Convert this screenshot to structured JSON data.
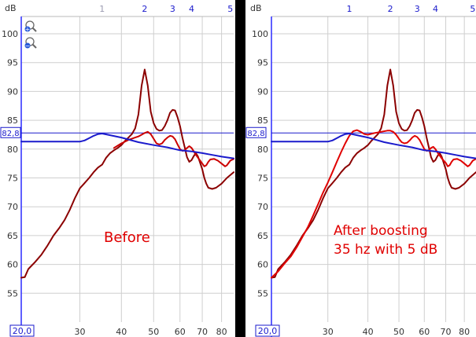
{
  "panels": [
    {
      "id": "before",
      "show_zoom_icons": true,
      "unit_label": "dB",
      "annotation": "Before",
      "ref_level_label": "82,8",
      "x_start_label": "20,0",
      "freq_markers": [
        {
          "label": "1",
          "freq": 35,
          "highlighted": false
        },
        {
          "label": "2",
          "freq": 47,
          "highlighted": true
        },
        {
          "label": "3",
          "freq": 57,
          "highlighted": true
        },
        {
          "label": "4",
          "freq": 65,
          "highlighted": true
        },
        {
          "label": "5",
          "freq": 85,
          "highlighted": true
        }
      ]
    },
    {
      "id": "after",
      "show_zoom_icons": false,
      "unit_label": "dB",
      "annotation": "After boosting\n35 hz with 5 dB",
      "ref_level_label": "82,8",
      "x_start_label": "20,0",
      "freq_markers": [
        {
          "label": "1",
          "freq": 35,
          "highlighted": true
        },
        {
          "label": "2",
          "freq": 47,
          "highlighted": true
        },
        {
          "label": "3",
          "freq": 57,
          "highlighted": true
        },
        {
          "label": "4",
          "freq": 65,
          "highlighted": true
        },
        {
          "label": "5",
          "freq": 85,
          "highlighted": true
        }
      ]
    }
  ],
  "chart_data": [
    {
      "type": "line",
      "title": "Before",
      "x_scale": "log",
      "xlim": [
        20,
        87
      ],
      "ylim": [
        50,
        103
      ],
      "xticks": [
        30,
        40,
        50,
        60,
        70,
        80
      ],
      "yticks": [
        55,
        60,
        65,
        70,
        75,
        80,
        85,
        90,
        95,
        100
      ],
      "ref_level": 82.8,
      "grid": true,
      "series": [
        {
          "color": "#8b0000",
          "points": [
            [
              20,
              57.7
            ],
            [
              20.5,
              57.8
            ],
            [
              21,
              59.2
            ],
            [
              22,
              60.4
            ],
            [
              23,
              61.7
            ],
            [
              24,
              63.3
            ],
            [
              25,
              65
            ],
            [
              26,
              66.3
            ],
            [
              27,
              67.7
            ],
            [
              28,
              69.5
            ],
            [
              29,
              71.5
            ],
            [
              30,
              73.2
            ],
            [
              31,
              74.1
            ],
            [
              32,
              75
            ],
            [
              33,
              76
            ],
            [
              34,
              76.8
            ],
            [
              35,
              77.3
            ],
            [
              36,
              78.5
            ],
            [
              37,
              79.3
            ],
            [
              38,
              79.8
            ],
            [
              39,
              80.2
            ],
            [
              40,
              80.7
            ],
            [
              41,
              81.4
            ],
            [
              42,
              82
            ],
            [
              43,
              82.6
            ],
            [
              44,
              83.6
            ],
            [
              45,
              86
            ],
            [
              46,
              91
            ],
            [
              47,
              93.8
            ],
            [
              48,
              91
            ],
            [
              49,
              86.5
            ],
            [
              50,
              84.5
            ],
            [
              51,
              83.5
            ],
            [
              52,
              83.2
            ],
            [
              53,
              83.3
            ],
            [
              54,
              84
            ],
            [
              55,
              85
            ],
            [
              56,
              86.3
            ],
            [
              57,
              86.8
            ],
            [
              58,
              86.7
            ],
            [
              59,
              85.5
            ],
            [
              60,
              84
            ],
            [
              61,
              82
            ],
            [
              62,
              80.3
            ],
            [
              63,
              78.6
            ],
            [
              64,
              77.8
            ],
            [
              65,
              78.1
            ],
            [
              66,
              78.8
            ],
            [
              67,
              79.3
            ],
            [
              68,
              78.7
            ],
            [
              70,
              76.5
            ],
            [
              71,
              75
            ],
            [
              72,
              74
            ],
            [
              73,
              73.3
            ],
            [
              75,
              73.1
            ],
            [
              77,
              73.3
            ],
            [
              80,
              74
            ],
            [
              83,
              75
            ],
            [
              87,
              76
            ]
          ]
        },
        {
          "color": "#cc0000",
          "points": [
            [
              38,
              80.2
            ],
            [
              40,
              81
            ],
            [
              42,
              81.6
            ],
            [
              44,
              82
            ],
            [
              45,
              82.2
            ],
            [
              46,
              82.5
            ],
            [
              47,
              82.8
            ],
            [
              48,
              83
            ],
            [
              49,
              82.6
            ],
            [
              50,
              81.8
            ],
            [
              51,
              81
            ],
            [
              52,
              80.8
            ],
            [
              53,
              81
            ],
            [
              54,
              81.6
            ],
            [
              55,
              82
            ],
            [
              56,
              82.3
            ],
            [
              57,
              82.2
            ],
            [
              58,
              81.7
            ],
            [
              59,
              80.8
            ],
            [
              60,
              80
            ],
            [
              61,
              79.7
            ],
            [
              62,
              79.8
            ],
            [
              63,
              80.2
            ],
            [
              64,
              80.5
            ],
            [
              65,
              80.2
            ],
            [
              66,
              79.6
            ],
            [
              67,
              79
            ],
            [
              68,
              78.5
            ],
            [
              70,
              77.5
            ],
            [
              71,
              77
            ],
            [
              72,
              77.2
            ],
            [
              73,
              77.8
            ],
            [
              74,
              78.2
            ],
            [
              76,
              78.3
            ],
            [
              78,
              78
            ],
            [
              80,
              77.5
            ],
            [
              82,
              77
            ],
            [
              83,
              77.2
            ],
            [
              85,
              78
            ],
            [
              87,
              78.3
            ]
          ]
        },
        {
          "color": "#1a1acc",
          "points": [
            [
              20,
              81.3
            ],
            [
              30,
              81.3
            ],
            [
              31,
              81.5
            ],
            [
              32,
              81.9
            ],
            [
              33,
              82.3
            ],
            [
              34,
              82.6
            ],
            [
              35,
              82.7
            ],
            [
              40,
              82
            ],
            [
              45,
              81.2
            ],
            [
              50,
              80.7
            ],
            [
              55,
              80.3
            ],
            [
              60,
              79.8
            ],
            [
              65,
              79.6
            ],
            [
              70,
              79.3
            ],
            [
              75,
              79
            ],
            [
              80,
              78.7
            ],
            [
              87,
              78.4
            ]
          ]
        }
      ]
    },
    {
      "type": "line",
      "title": "After boosting 35 hz with 5 dB",
      "x_scale": "log",
      "xlim": [
        20,
        87
      ],
      "ylim": [
        50,
        103
      ],
      "xticks": [
        30,
        40,
        50,
        60,
        70,
        80
      ],
      "yticks": [
        55,
        60,
        65,
        70,
        75,
        80,
        85,
        90,
        95,
        100
      ],
      "ref_level": 82.8,
      "grid": true,
      "series": [
        {
          "color": "#8b0000",
          "points": [
            [
              20,
              57.7
            ],
            [
              20.5,
              57.8
            ],
            [
              21,
              59.2
            ],
            [
              22,
              60.4
            ],
            [
              23,
              61.7
            ],
            [
              24,
              63.3
            ],
            [
              25,
              65
            ],
            [
              26,
              66.3
            ],
            [
              27,
              67.7
            ],
            [
              28,
              69.5
            ],
            [
              29,
              71.5
            ],
            [
              30,
              73.2
            ],
            [
              31,
              74.1
            ],
            [
              32,
              75
            ],
            [
              33,
              76
            ],
            [
              34,
              76.8
            ],
            [
              35,
              77.3
            ],
            [
              36,
              78.5
            ],
            [
              37,
              79.3
            ],
            [
              38,
              79.8
            ],
            [
              39,
              80.2
            ],
            [
              40,
              80.7
            ],
            [
              41,
              81.4
            ],
            [
              42,
              82
            ],
            [
              43,
              82.6
            ],
            [
              44,
              83.6
            ],
            [
              45,
              86
            ],
            [
              46,
              91
            ],
            [
              47,
              93.8
            ],
            [
              48,
              91
            ],
            [
              49,
              86.5
            ],
            [
              50,
              84.5
            ],
            [
              51,
              83.5
            ],
            [
              52,
              83.2
            ],
            [
              53,
              83.3
            ],
            [
              54,
              84
            ],
            [
              55,
              85
            ],
            [
              56,
              86.3
            ],
            [
              57,
              86.8
            ],
            [
              58,
              86.7
            ],
            [
              59,
              85.5
            ],
            [
              60,
              84
            ],
            [
              61,
              82
            ],
            [
              62,
              80.3
            ],
            [
              63,
              78.6
            ],
            [
              64,
              77.8
            ],
            [
              65,
              78.1
            ],
            [
              66,
              78.8
            ],
            [
              67,
              79.3
            ],
            [
              68,
              78.7
            ],
            [
              70,
              76.5
            ],
            [
              71,
              75
            ],
            [
              72,
              74
            ],
            [
              73,
              73.3
            ],
            [
              75,
              73.1
            ],
            [
              77,
              73.3
            ],
            [
              80,
              74
            ],
            [
              83,
              75
            ],
            [
              87,
              76
            ]
          ]
        },
        {
          "color": "#e00000",
          "points": [
            [
              20,
              57.7
            ],
            [
              21,
              58.8
            ],
            [
              22,
              60.2
            ],
            [
              23,
              61.4
            ],
            [
              24,
              63
            ],
            [
              25,
              64.8
            ],
            [
              26,
              66.5
            ],
            [
              27,
              68.5
            ],
            [
              28,
              70.5
            ],
            [
              29,
              72.5
            ],
            [
              30,
              74.2
            ],
            [
              31,
              76
            ],
            [
              32,
              77.8
            ],
            [
              33,
              79.5
            ],
            [
              34,
              81
            ],
            [
              35,
              82.3
            ],
            [
              36,
              83.1
            ],
            [
              37,
              83.3
            ],
            [
              38,
              83
            ],
            [
              39,
              82.6
            ],
            [
              40,
              82.5
            ],
            [
              42,
              82.8
            ],
            [
              44,
              83
            ],
            [
              46,
              83.2
            ],
            [
              47,
              83.2
            ],
            [
              48,
              83
            ],
            [
              49,
              82.5
            ],
            [
              50,
              81.8
            ],
            [
              51,
              81.2
            ],
            [
              52,
              81
            ],
            [
              53,
              81.1
            ],
            [
              54,
              81.5
            ],
            [
              55,
              82
            ],
            [
              56,
              82.3
            ],
            [
              57,
              82.1
            ],
            [
              58,
              81.6
            ],
            [
              59,
              80.8
            ],
            [
              60,
              80
            ],
            [
              61,
              79.7
            ],
            [
              62,
              79.8
            ],
            [
              63,
              80.2
            ],
            [
              64,
              80.4
            ],
            [
              65,
              80
            ],
            [
              66,
              79.4
            ],
            [
              67,
              78.9
            ],
            [
              68,
              78.4
            ],
            [
              70,
              77.6
            ],
            [
              71,
              77
            ],
            [
              72,
              77.2
            ],
            [
              73,
              77.8
            ],
            [
              74,
              78.2
            ],
            [
              76,
              78.3
            ],
            [
              78,
              78
            ],
            [
              80,
              77.5
            ],
            [
              82,
              77
            ],
            [
              83,
              77.2
            ],
            [
              85,
              78
            ],
            [
              87,
              78.3
            ]
          ]
        },
        {
          "color": "#1a1acc",
          "points": [
            [
              20,
              81.3
            ],
            [
              30,
              81.3
            ],
            [
              31,
              81.5
            ],
            [
              32,
              81.9
            ],
            [
              33,
              82.3
            ],
            [
              34,
              82.6
            ],
            [
              35,
              82.7
            ],
            [
              40,
              82
            ],
            [
              45,
              81.2
            ],
            [
              50,
              80.7
            ],
            [
              55,
              80.3
            ],
            [
              60,
              79.8
            ],
            [
              65,
              79.6
            ],
            [
              70,
              79.3
            ],
            [
              75,
              79
            ],
            [
              80,
              78.7
            ],
            [
              87,
              78.4
            ]
          ]
        }
      ]
    }
  ]
}
